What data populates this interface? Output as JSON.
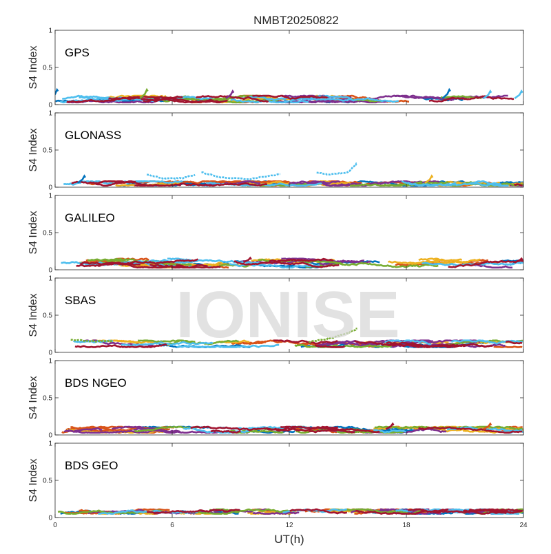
{
  "figure": {
    "title": "NMBT20250822",
    "xlabel": "UT(h)",
    "watermark": "IONISE"
  },
  "colors": {
    "palette": [
      "#0072BD",
      "#D95319",
      "#EDB120",
      "#7E2F8E",
      "#77AC30",
      "#4DBEEE",
      "#A2142F"
    ],
    "axis": "#262626",
    "panel_bg": "#ffffff",
    "watermark": "#d9d9d9"
  },
  "chart_data": [
    {
      "type": "line",
      "label": "GPS",
      "ylabel": "S4 Index",
      "xlim": [
        0,
        24
      ],
      "ylim": [
        0,
        1
      ],
      "xticks": [
        "0",
        "6",
        "12",
        "18",
        "24"
      ],
      "yticks": [
        "0",
        "0.5",
        "1"
      ],
      "baseline_range": [
        0.03,
        0.12
      ],
      "features": [
        {
          "x": 0.1,
          "y": 0.2,
          "series": 0
        },
        {
          "x": 4.7,
          "y": 0.2,
          "series": 4
        },
        {
          "x": 9.1,
          "y": 0.18,
          "series": 3
        },
        {
          "x": 20.2,
          "y": 0.2,
          "series": 0
        },
        {
          "x": 22.3,
          "y": 0.18,
          "series": 5
        },
        {
          "x": 23.9,
          "y": 0.18,
          "series": 5
        }
      ]
    },
    {
      "type": "line",
      "label": "GLONASS",
      "ylabel": "S4 Index",
      "xlim": [
        0,
        24
      ],
      "ylim": [
        0,
        1
      ],
      "xticks": [
        "0",
        "6",
        "12",
        "18",
        "24"
      ],
      "yticks": [
        "0",
        "0.5",
        "1"
      ],
      "baseline_range": [
        0.02,
        0.08
      ],
      "features": [
        {
          "x": 1.5,
          "y": 0.15,
          "series": 0
        },
        {
          "x": 19.3,
          "y": 0.15,
          "series": 2
        }
      ],
      "arcs": [
        {
          "series": 5,
          "x": [
            4.7,
            5.5,
            6.5,
            7.2
          ],
          "y": [
            0.17,
            0.12,
            0.12,
            0.17
          ]
        },
        {
          "series": 5,
          "x": [
            7.5,
            8.5,
            10.0,
            11.6
          ],
          "y": [
            0.2,
            0.13,
            0.11,
            0.18
          ]
        },
        {
          "series": 5,
          "x": [
            13.4,
            14.0,
            15.0,
            15.5
          ],
          "y": [
            0.2,
            0.17,
            0.2,
            0.33
          ]
        }
      ]
    },
    {
      "type": "line",
      "label": "GALILEO",
      "ylabel": "S4 Index",
      "xlim": [
        0,
        24
      ],
      "ylim": [
        0,
        1
      ],
      "xticks": [
        "0",
        "6",
        "12",
        "18",
        "24"
      ],
      "yticks": [
        "0",
        "0.5",
        "1"
      ],
      "baseline_range": [
        0.03,
        0.15
      ],
      "features": [
        {
          "x": 10.0,
          "y": 0.16,
          "series": 6
        },
        {
          "x": 23.9,
          "y": 0.15,
          "series": 6
        }
      ]
    },
    {
      "type": "line",
      "label": "SBAS",
      "ylabel": "S4 Index",
      "xlim": [
        0,
        24
      ],
      "ylim": [
        0,
        1
      ],
      "xticks": [
        "0",
        "6",
        "12",
        "18",
        "24"
      ],
      "yticks": [
        "0",
        "0.5",
        "1"
      ],
      "baseline_range": [
        0.07,
        0.16
      ],
      "arcs": [
        {
          "series": 4,
          "x": [
            13.0,
            14.0,
            15.0,
            15.5
          ],
          "y": [
            0.14,
            0.18,
            0.26,
            0.32
          ]
        },
        {
          "series": 4,
          "x": [
            0.8,
            2.0,
            3.0
          ],
          "y": [
            0.17,
            0.15,
            0.15
          ]
        }
      ]
    },
    {
      "type": "line",
      "label": "BDS NGEO",
      "ylabel": "S4 Index",
      "xlim": [
        0,
        24
      ],
      "ylim": [
        0,
        1
      ],
      "xticks": [
        "0",
        "6",
        "12",
        "18",
        "24"
      ],
      "yticks": [
        "0",
        "0.5",
        "1"
      ],
      "baseline_range": [
        0.03,
        0.11
      ],
      "features": [
        {
          "x": 17.3,
          "y": 0.15,
          "series": 6
        },
        {
          "x": 22.3,
          "y": 0.15,
          "series": 1
        }
      ]
    },
    {
      "type": "line",
      "label": "BDS GEO",
      "ylabel": "S4 Index",
      "xlim": [
        0,
        24
      ],
      "ylim": [
        0,
        1
      ],
      "xticks": [
        "0",
        "6",
        "12",
        "18",
        "24"
      ],
      "yticks": [
        "0",
        "0.5",
        "1"
      ],
      "baseline_range": [
        0.05,
        0.11
      ],
      "features": []
    }
  ]
}
